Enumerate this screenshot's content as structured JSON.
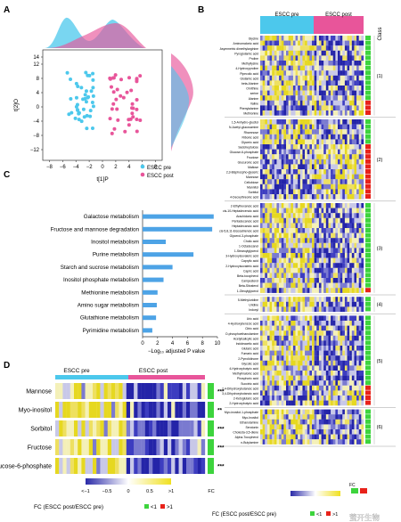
{
  "panels": {
    "A": {
      "letter": "A",
      "xlabel": "t[1]P",
      "ylabel": "t[2]O",
      "xticks": [
        "−8",
        "−6",
        "−4",
        "−2",
        "0",
        "2",
        "4",
        "6",
        "8"
      ],
      "yticks": [
        "14",
        "12",
        "8",
        "4",
        "0",
        "−4",
        "−8",
        "−12"
      ],
      "legend": [
        {
          "label": "ESCC pre",
          "color": "#4cc8ec"
        },
        {
          "label": "ESCC post",
          "color": "#e8559a"
        }
      ]
    },
    "B": {
      "letter": "B",
      "groups": [
        "ESCC pre",
        "ESCC post"
      ],
      "class_header": "Class",
      "classes": [
        "(1)",
        "(2)",
        "(3)",
        "(4)",
        "(5)",
        "(6)"
      ],
      "fc_legend": {
        "title": "FC (ESCC post/ESCC pre)",
        "lt": "<1",
        "gt": ">1"
      }
    },
    "C": {
      "letter": "C",
      "xlabel": "−Log₁₀ adjusted P value",
      "xticks": [
        "0",
        "2",
        "4",
        "6",
        "8",
        "10"
      ]
    },
    "D": {
      "letter": "D",
      "groups": [
        "ESCC pre",
        "ESCC post"
      ],
      "fc_label": "FC",
      "rows": [
        {
          "name": "Mannose",
          "sig": "***"
        },
        {
          "name": "Myo-inositol",
          "sig": "**"
        },
        {
          "name": "Sorbitol",
          "sig": "***"
        },
        {
          "name": "Fructose",
          "sig": "***"
        },
        {
          "name": "Glucose-6-phosphate",
          "sig": "***"
        }
      ],
      "scale": [
        "<−1",
        "−0.5",
        "0",
        "0.5",
        ">1"
      ],
      "legend_title": "FC (ESCC post/ESCC pre)",
      "lt": "<1",
      "gt": ">1"
    }
  },
  "metabolites": {
    "c1": [
      "Glycine",
      "Aminomalonic acid",
      "Asymmetric dimethylarginine",
      "Pyroglutamic acid",
      "Proline",
      "Methyllysine",
      "4-Hydroxyproline",
      "Pipecolic acid",
      "Glutamic acid",
      "beta-Alanine",
      "Ornithine",
      "serine",
      "Alanine",
      "Valine",
      "Phenylalanine",
      "Methionine"
    ],
    "c2": [
      "1,5-Anhydro-glucitol",
      "N-Acetyl-glucosamine",
      "Rhamnose",
      "Ribonic acid",
      "Glyceric acid",
      "Sedoheptulose",
      "Glucose-6-phosphate",
      "Fructose",
      "Glucuronic acid",
      "Maltose",
      "2,3-Bisphospho-glyceric",
      "Mannose",
      "Cellobiose",
      "Mannitol",
      "Sorbitol",
      "4-Deoxythreonic acid"
    ],
    "c3": [
      "2-Ethylhexanoic acid",
      "cis-10-Heptadecenoic acid",
      "Arachidonic acid",
      "Pentadecanoic acid",
      "Heptadecanoic acid",
      "cis-5,8,11-Eicosatrienoic acid",
      "Glycerol-3-phosphate",
      "Cholic acid",
      "1-Octadecanol",
      "1-Stearoylglycerol",
      "3-Hydroxyisovaleric acid",
      "Caprylic acid",
      "2-Hydroxyisovaleric acid",
      "Capric acid",
      "Beta-tocopherol",
      "Campesterol",
      "Beta-Sitosterol",
      "1-Oleoylglycerol"
    ],
    "c4": [
      "5-Methyluridine",
      "Uridine",
      "Indoxyl"
    ],
    "c5": [
      "Uric acid",
      "4-Hydroxybenzoic acid",
      "Citric acid",
      "O-phosphoethanolamine",
      "Acetylsalicylic acid",
      "Indoleacetic acid",
      "Glutaric acid",
      "Fumaric acid",
      "2-Pyrrolidinone",
      "Glycolic acid",
      "4-Hydroxybutyric acid",
      "Methylmalonic acid",
      "Phosphoric acid",
      "Succinic acid",
      "2,4-Dihydroxybutanoic acid",
      "3,4-Dihydroxybutanoic acid",
      "2-Ketoglutaric acid",
      "2-Hydroxybutyric acid"
    ],
    "c6": [
      "Myo-inositol-1-phosphate",
      "Myo-Inositol",
      "Ethanolamine",
      "Serotonin",
      "Cholesta-3,5-diene",
      "Alpha-Tocopherol",
      "n-Butylamine"
    ]
  },
  "chart_data": {
    "type": "bar",
    "orientation": "horizontal",
    "categories": [
      "Galactose metabolism",
      "Fructose and mannose degradation",
      "Inositol metabolism",
      "Purine metabolism",
      "Starch and sucrose metabolism",
      "Inositol phosphate metabolism",
      "Methionine metabolism",
      "Amino sugar metabolism",
      "Glutathione metabolism",
      "Pyrimidine metabolism"
    ],
    "values": [
      9.5,
      9.3,
      3.1,
      6.8,
      4.0,
      2.8,
      2.0,
      1.9,
      1.8,
      1.3
    ],
    "xlabel": "−Log₁₀ adjusted P value",
    "xlim": [
      0,
      10
    ],
    "color": "#4da3e6"
  },
  "watermark": "萤开生物"
}
